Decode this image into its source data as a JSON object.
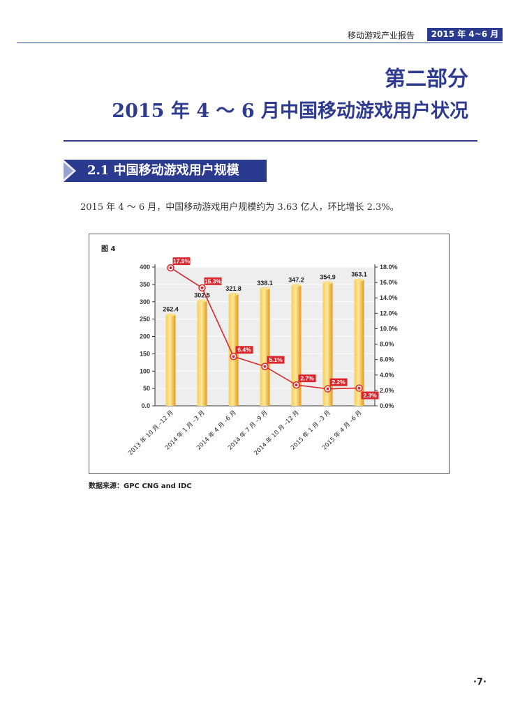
{
  "header": {
    "report_title": "移动游戏产业报告",
    "badge": "2015 年 4~6 月"
  },
  "part": {
    "title": "第二部分",
    "subtitle": "2015 年 4 ～ 6 月中国移动游戏用户状况"
  },
  "section": {
    "heading": "2.1 中国移动游戏用户规模"
  },
  "paragraph": "2015 年 4 ～ 6 月，中国移动游戏用户规模约为 3.63 亿人，环比增长 2.3%。",
  "figure": {
    "label": "图 4",
    "source": "数据来源：GPC CNG and IDC"
  },
  "chart_data": {
    "type": "bar",
    "categories": [
      "2013 年 10 月 –12 月",
      "2014 年 1 月 –3 月",
      "2014 年 4 月 –6 月",
      "2014 年 7 月 –9 月",
      "2014 年 10 月 –12 月",
      "2015 年 1 月 –3 月",
      "2015 年 4 月 –6 月"
    ],
    "series": [
      {
        "values": [
          262.4,
          302.5,
          321.8,
          338.1,
          347.2,
          354.9,
          363.1
        ],
        "labels": [
          "262.4",
          "302.5",
          "321.8",
          "338.1",
          "347.2",
          "354.9",
          "363.1"
        ],
        "color": "#f2b32b"
      },
      {
        "values": [
          17.9,
          15.3,
          6.4,
          5.1,
          2.7,
          2.2,
          2.3
        ],
        "labels": [
          "17.9%",
          "15.3%",
          "6.4%",
          "5.1%",
          "2.7%",
          "2.2%",
          "2.3%"
        ],
        "type": "line",
        "color": "#d9262c"
      }
    ],
    "ylim": [
      0,
      400
    ],
    "yticks": [
      "0.0",
      "50",
      "100",
      "150",
      "200",
      "250",
      "300",
      "350",
      "400"
    ],
    "y2lim": [
      0,
      18
    ],
    "y2ticks": [
      "0.0%",
      "2.0%",
      "4.0%",
      "6.0%",
      "8.0%",
      "10.0%",
      "12.0%",
      "14.0%",
      "16.0%",
      "18.0%"
    ],
    "grid": true
  },
  "page_number": "·7·"
}
